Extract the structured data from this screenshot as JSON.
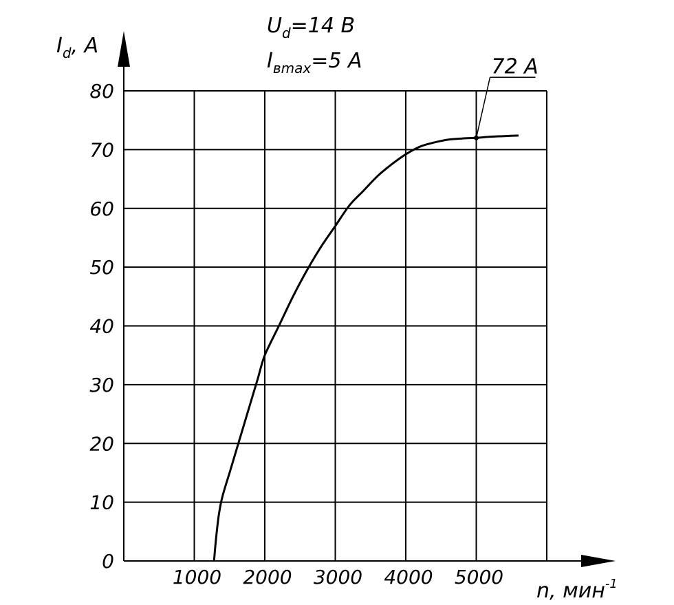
{
  "chart_data": {
    "type": "line",
    "x_ticks": [
      "1000",
      "2000",
      "3000",
      "4000",
      "5000"
    ],
    "y_ticks": [
      "0",
      "10",
      "20",
      "30",
      "40",
      "50",
      "60",
      "70",
      "80"
    ],
    "xlim": [
      0,
      6000
    ],
    "ylim": [
      0,
      80
    ],
    "grid": true,
    "ylabel": {
      "symbol": "I",
      "sub": "d",
      "unit": ", A"
    },
    "xlabel": {
      "text": "n, мин",
      "sup": "-1"
    },
    "parameters": [
      {
        "symbol": "U",
        "sub": "d",
        "value": "=14 B"
      },
      {
        "symbol": "I",
        "sub": "вmax",
        "value": "=5 A"
      }
    ],
    "series": [
      {
        "x": [
          1280,
          1310,
          1350,
          1400,
          1500,
          1600,
          1700,
          1800,
          1900,
          2000,
          2200,
          2400,
          2600,
          2800,
          3000,
          3200,
          3400,
          3600,
          3800,
          4000,
          4200,
          4400,
          4600,
          4800,
          5000,
          5200,
          5400,
          5600
        ],
        "y": [
          0,
          4,
          8,
          11,
          15,
          19,
          23,
          27,
          31,
          35,
          40,
          45,
          49.5,
          53.5,
          57,
          60.5,
          63,
          65.5,
          67.5,
          69.2,
          70.5,
          71.2,
          71.7,
          71.9,
          72,
          72.2,
          72.3,
          72.4
        ]
      }
    ],
    "annotation": {
      "x": 5000,
      "y": 72,
      "text": "72 A"
    }
  }
}
